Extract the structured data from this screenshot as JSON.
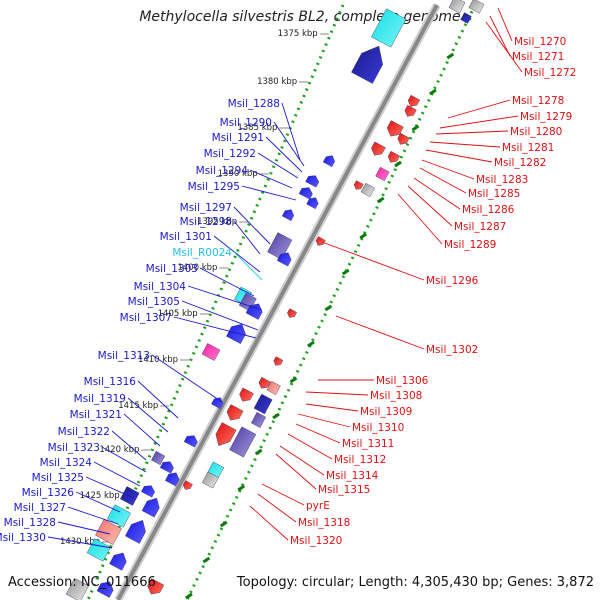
{
  "title": "Methylocella silvestris BL2, complete genome",
  "accession_text": "Accession: NC_011666",
  "topology_text": "Topology: circular; Length: 4,305,430 bp; Genes: 3,872",
  "colors": {
    "backbone": "#888888",
    "forward_dots": "#1aa21a",
    "left_label": "#1a1acc",
    "rna_label": "#22c0e8",
    "right_label": "#dd1111",
    "kbp_text": "#222222"
  },
  "kbp_ticks": [
    "1375 kbp",
    "1380 kbp",
    "1385 kbp",
    "1390 kbp",
    "1395 kbp",
    "1400 kbp",
    "1405 kbp",
    "1410 kbp",
    "1415 kbp",
    "1420 kbp",
    "1425 kbp",
    "1430 kbp"
  ],
  "left_labels": [
    "Msil_1288",
    "Msil_1290",
    "Msil_1291",
    "Msil_1292",
    "Msil_1294",
    "Msil_1295",
    "Msil_1297",
    "Msil_1298",
    "Msil_1301",
    "Msil_R0024",
    "Msil_1303",
    "Msil_1304",
    "Msil_1305",
    "Msil_1307",
    "Msil_1313",
    "Msil_1316",
    "Msil_1319",
    "Msil_1321",
    "Msil_1322",
    "Msil_1323",
    "Msil_1324",
    "Msil_1325",
    "Msil_1326",
    "Msil_1327",
    "Msil_1328",
    "Msil_1330"
  ],
  "right_labels": [
    "Msil_1270",
    "Msil_1271",
    "Msil_1272",
    "Msil_1278",
    "Msil_1279",
    "Msil_1280",
    "Msil_1281",
    "Msil_1282",
    "Msil_1283",
    "Msil_1285",
    "Msil_1286",
    "Msil_1287",
    "Msil_1289",
    "Msil_1296",
    "Msil_1302",
    "Msil_1306",
    "Msil_1308",
    "Msil_1309",
    "Msil_1310",
    "Msil_1311",
    "Msil_1312",
    "Msil_1314",
    "Msil_1315",
    "pyrE",
    "Msil_1318",
    "Msil_1320"
  ]
}
